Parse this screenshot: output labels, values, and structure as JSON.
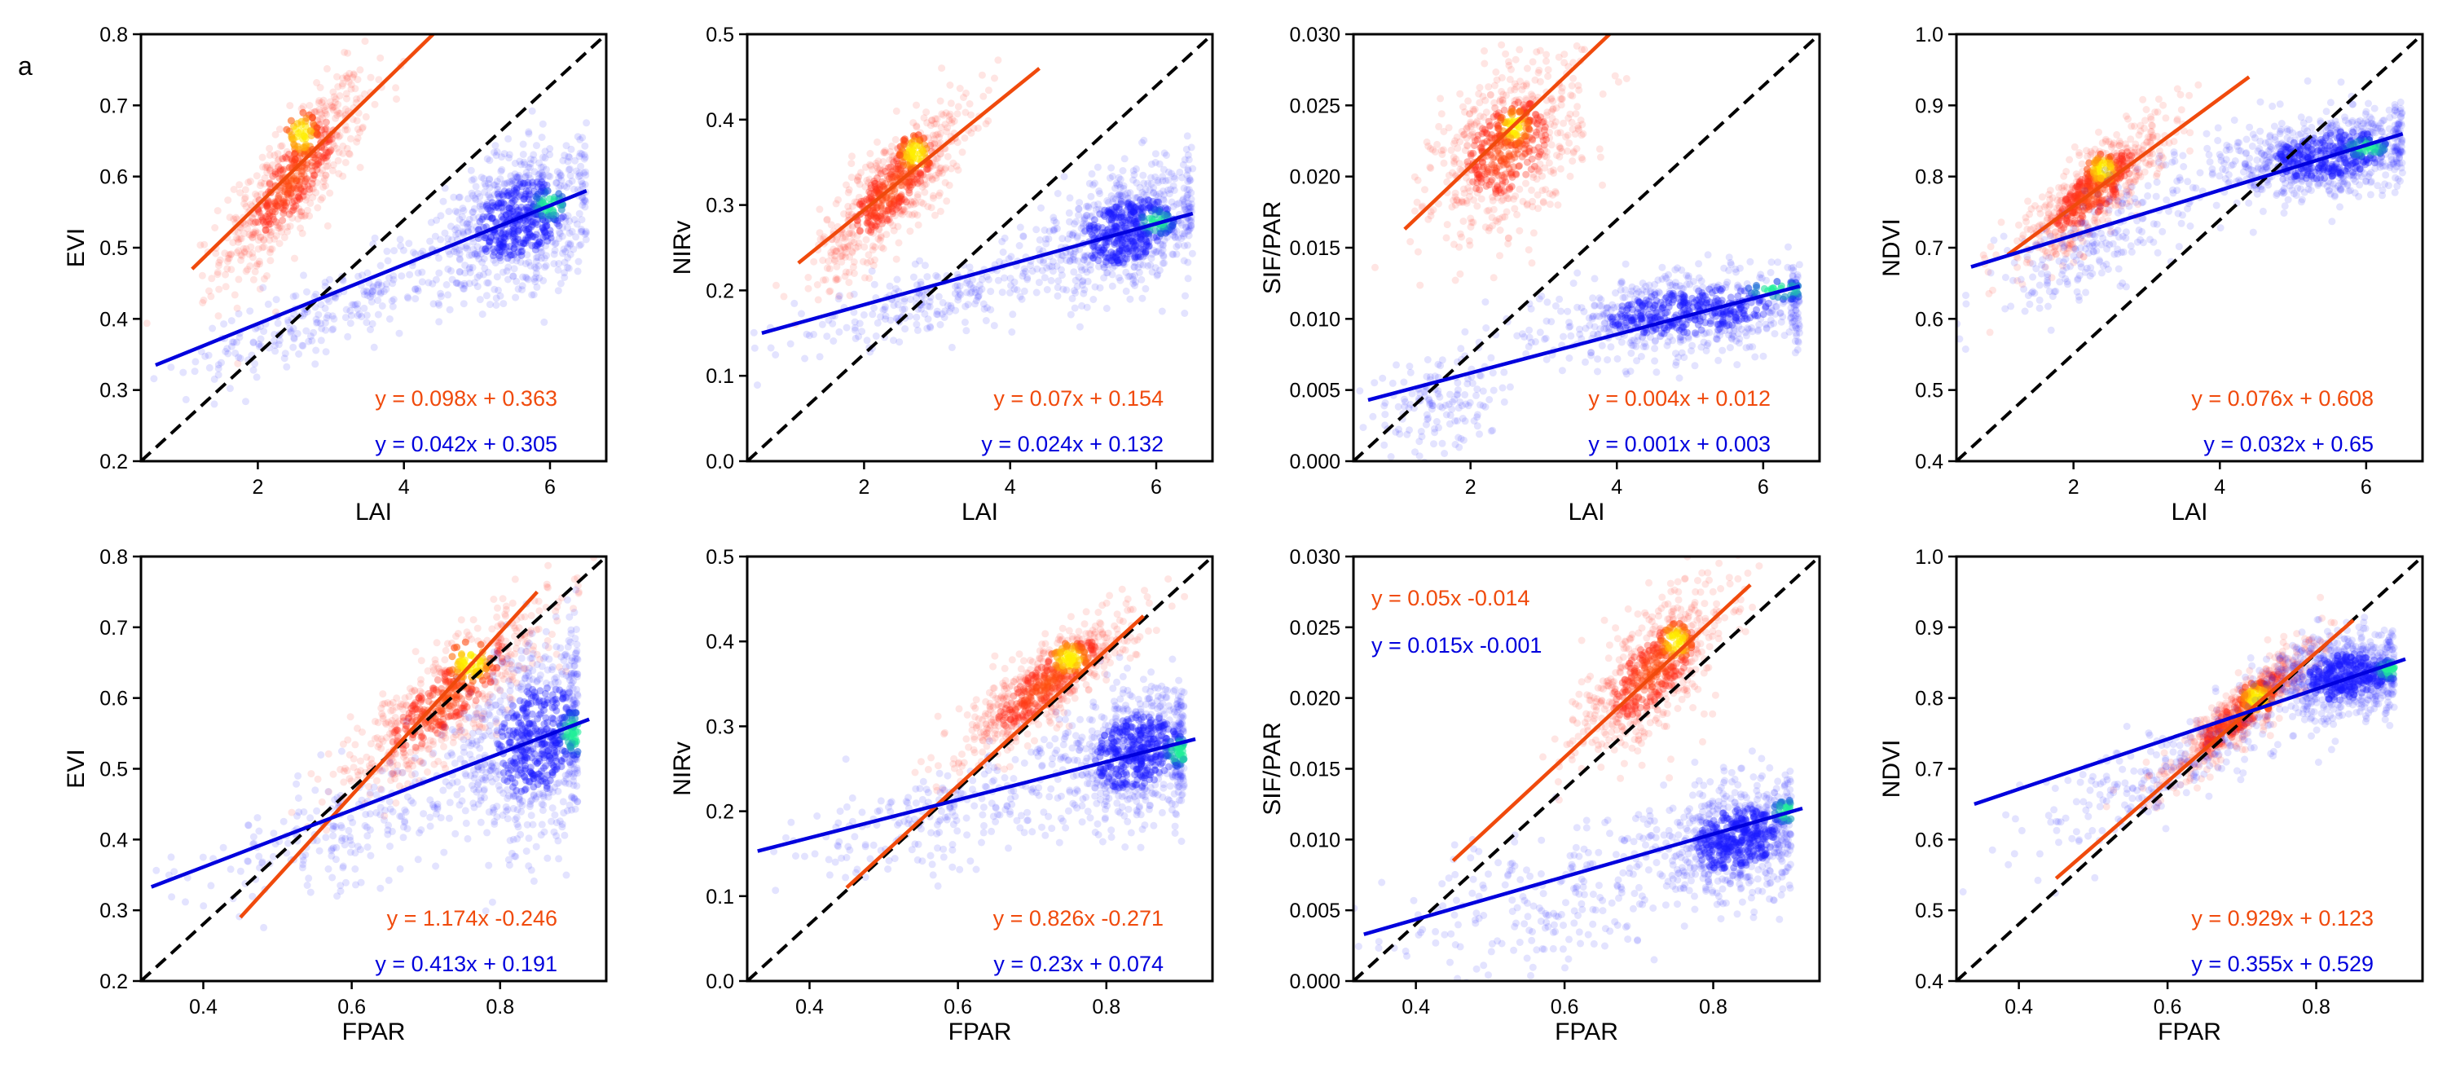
{
  "figure": {
    "panel_letter": "a"
  },
  "colors": {
    "red_fit": "#f04a0c",
    "blue_fit": "#0000dd",
    "red_point": "#ff2a1a",
    "blue_point": "#1a1aff",
    "red_core": "#ffee00",
    "blue_core": "#22ee99",
    "identity": "#000000"
  },
  "chart_data": [
    {
      "type": "scatter",
      "xlabel": "LAI",
      "ylabel": "EVI",
      "xlim": [
        0.4,
        6.77
      ],
      "ylim": [
        0.2,
        0.8
      ],
      "xticks": [
        2,
        4,
        6
      ],
      "xtick_labels": [
        "2",
        "4",
        "6"
      ],
      "yticks": [
        0.2,
        0.3,
        0.4,
        0.5,
        0.6,
        0.7,
        0.8
      ],
      "ytick_labels": [
        "0.2",
        "0.3",
        "0.4",
        "0.5",
        "0.6",
        "0.7",
        "0.8"
      ],
      "legend_placement": "bottom-right",
      "series": [
        {
          "name": "red",
          "equation": "y = 0.098x + 0.363",
          "fit": [
            [
              1.1,
              0.47
            ],
            [
              4.4,
              0.8
            ]
          ],
          "clouds": [
            {
              "cx": 2.5,
              "cy": 0.6,
              "sx": 0.5,
              "sy": 0.07,
              "rho": 0.8,
              "n": 650
            }
          ],
          "core": [
            2.6,
            0.66
          ]
        },
        {
          "name": "blue",
          "equation": "y = 0.042x + 0.305",
          "fit": [
            [
              0.6,
              0.335
            ],
            [
              6.5,
              0.58
            ]
          ],
          "clouds": [
            {
              "cx": 5.6,
              "cy": 0.54,
              "sx": 0.55,
              "sy": 0.05,
              "rho": 0.3,
              "n": 750
            },
            {
              "cx": 3.0,
              "cy": 0.41,
              "sx": 1.0,
              "sy": 0.05,
              "rho": 0.8,
              "n": 250
            }
          ],
          "core": [
            6.0,
            0.56
          ],
          "xmax": 6.5
        }
      ]
    },
    {
      "type": "scatter",
      "xlabel": "LAI",
      "ylabel": "NIRv",
      "xlim": [
        0.4,
        6.77
      ],
      "ylim": [
        0.0,
        0.5
      ],
      "xticks": [
        2,
        4,
        6
      ],
      "xtick_labels": [
        "2",
        "4",
        "6"
      ],
      "yticks": [
        0,
        0.1,
        0.2,
        0.3,
        0.4,
        0.5
      ],
      "ytick_labels": [
        "0.0",
        "0.1",
        "0.2",
        "0.3",
        "0.4",
        "0.5"
      ],
      "legend_placement": "bottom-right",
      "series": [
        {
          "name": "red",
          "equation": "y = 0.07x + 0.154",
          "fit": [
            [
              1.1,
              0.232
            ],
            [
              4.4,
              0.46
            ]
          ],
          "clouds": [
            {
              "cx": 2.4,
              "cy": 0.32,
              "sx": 0.5,
              "sy": 0.05,
              "rho": 0.8,
              "n": 650
            }
          ],
          "core": [
            2.7,
            0.36
          ]
        },
        {
          "name": "blue",
          "equation": "y = 0.024x + 0.132",
          "fit": [
            [
              0.6,
              0.15
            ],
            [
              6.5,
              0.29
            ]
          ],
          "clouds": [
            {
              "cx": 5.6,
              "cy": 0.27,
              "sx": 0.55,
              "sy": 0.035,
              "rho": 0.3,
              "n": 750
            },
            {
              "cx": 3.0,
              "cy": 0.19,
              "sx": 1.0,
              "sy": 0.03,
              "rho": 0.8,
              "n": 250
            }
          ],
          "core": [
            6.0,
            0.28
          ],
          "xmax": 6.5
        }
      ]
    },
    {
      "type": "scatter",
      "xlabel": "LAI",
      "ylabel": "SIF/PAR",
      "xlim": [
        0.4,
        6.77
      ],
      "ylim": [
        0.0,
        0.03
      ],
      "xticks": [
        2,
        4,
        6
      ],
      "xtick_labels": [
        "2",
        "4",
        "6"
      ],
      "yticks": [
        0,
        0.005,
        0.01,
        0.015,
        0.02,
        0.025,
        0.03
      ],
      "ytick_labels": [
        "0.000",
        "0.005",
        "0.010",
        "0.015",
        "0.020",
        "0.025",
        "0.030"
      ],
      "legend_placement": "bottom-right",
      "series": [
        {
          "name": "red",
          "equation": "y = 0.004x + 0.012",
          "fit": [
            [
              1.1,
              0.0163
            ],
            [
              3.9,
              0.03
            ]
          ],
          "clouds": [
            {
              "cx": 2.5,
              "cy": 0.022,
              "sx": 0.5,
              "sy": 0.003,
              "rho": 0.4,
              "n": 650
            }
          ],
          "core": [
            2.6,
            0.0235
          ]
        },
        {
          "name": "blue",
          "equation": "y = 0.001x + 0.003",
          "fit": [
            [
              0.6,
              0.0043
            ],
            [
              6.5,
              0.0123
            ]
          ],
          "clouds": [
            {
              "cx": 5.0,
              "cy": 0.0105,
              "sx": 1.0,
              "sy": 0.0015,
              "rho": 0.3,
              "n": 750
            },
            {
              "cx": 1.6,
              "cy": 0.004,
              "sx": 0.5,
              "sy": 0.002,
              "rho": 0.3,
              "n": 150
            }
          ],
          "core": [
            6.2,
            0.012
          ],
          "xmax": 6.5
        }
      ]
    },
    {
      "type": "scatter",
      "xlabel": "LAI",
      "ylabel": "NDVI",
      "xlim": [
        0.4,
        6.77
      ],
      "ylim": [
        0.4,
        1.0
      ],
      "xticks": [
        2,
        4,
        6
      ],
      "xtick_labels": [
        "2",
        "4",
        "6"
      ],
      "yticks": [
        0.4,
        0.5,
        0.6,
        0.7,
        0.8,
        0.9,
        1.0
      ],
      "ytick_labels": [
        "0.4",
        "0.5",
        "0.6",
        "0.7",
        "0.8",
        "0.9",
        "1.0"
      ],
      "legend_placement": "bottom-right",
      "series": [
        {
          "name": "red",
          "equation": "y = 0.076x + 0.608",
          "fit": [
            [
              1.1,
              0.69
            ],
            [
              4.4,
              0.94
            ]
          ],
          "clouds": [
            {
              "cx": 2.3,
              "cy": 0.78,
              "sx": 0.5,
              "sy": 0.05,
              "rho": 0.8,
              "n": 650
            }
          ],
          "core": [
            2.4,
            0.81
          ]
        },
        {
          "name": "blue",
          "equation": "y = 0.032x + 0.65",
          "fit": [
            [
              0.6,
              0.673
            ],
            [
              6.5,
              0.86
            ]
          ],
          "clouds": [
            {
              "cx": 5.5,
              "cy": 0.83,
              "sx": 0.7,
              "sy": 0.03,
              "rho": 0.3,
              "n": 750
            },
            {
              "cx": 2.5,
              "cy": 0.72,
              "sx": 0.9,
              "sy": 0.06,
              "rho": 0.8,
              "n": 250
            }
          ],
          "core": [
            6.0,
            0.84
          ],
          "xmax": 6.5
        }
      ]
    },
    {
      "type": "scatter",
      "xlabel": "FPAR",
      "ylabel": "EVI",
      "xlim": [
        0.316,
        0.943
      ],
      "ylim": [
        0.2,
        0.8
      ],
      "xticks": [
        0.4,
        0.6,
        0.8
      ],
      "xtick_labels": [
        "0.4",
        "0.6",
        "0.8"
      ],
      "yticks": [
        0.2,
        0.3,
        0.4,
        0.5,
        0.6,
        0.7,
        0.8
      ],
      "ytick_labels": [
        "0.2",
        "0.3",
        "0.4",
        "0.5",
        "0.6",
        "0.7",
        "0.8"
      ],
      "legend_placement": "bottom-right",
      "series": [
        {
          "name": "red",
          "equation": "y = 1.174x -0.246",
          "fit": [
            [
              0.45,
              0.29
            ],
            [
              0.85,
              0.75
            ]
          ],
          "clouds": [
            {
              "cx": 0.73,
              "cy": 0.6,
              "sx": 0.07,
              "sy": 0.07,
              "rho": 0.85,
              "n": 650
            }
          ],
          "core": [
            0.76,
            0.65
          ]
        },
        {
          "name": "blue",
          "equation": "y = 0.413x + 0.191",
          "fit": [
            [
              0.33,
              0.333
            ],
            [
              0.92,
              0.57
            ]
          ],
          "clouds": [
            {
              "cx": 0.85,
              "cy": 0.54,
              "sx": 0.05,
              "sy": 0.07,
              "rho": 0.2,
              "n": 750
            },
            {
              "cx": 0.6,
              "cy": 0.42,
              "sx": 0.12,
              "sy": 0.06,
              "rho": 0.7,
              "n": 250
            }
          ],
          "core": [
            0.9,
            0.55
          ],
          "xmax": 0.905
        }
      ]
    },
    {
      "type": "scatter",
      "xlabel": "FPAR",
      "ylabel": "NIRv",
      "xlim": [
        0.316,
        0.943
      ],
      "ylim": [
        0.0,
        0.5
      ],
      "xticks": [
        0.4,
        0.6,
        0.8
      ],
      "xtick_labels": [
        "0.4",
        "0.6",
        "0.8"
      ],
      "yticks": [
        0,
        0.1,
        0.2,
        0.3,
        0.4,
        0.5
      ],
      "ytick_labels": [
        "0.0",
        "0.1",
        "0.2",
        "0.3",
        "0.4",
        "0.5"
      ],
      "legend_placement": "bottom-right",
      "series": [
        {
          "name": "red",
          "equation": "y = 0.826x -0.271",
          "fit": [
            [
              0.45,
              0.11
            ],
            [
              0.85,
              0.43
            ]
          ],
          "clouds": [
            {
              "cx": 0.72,
              "cy": 0.35,
              "sx": 0.06,
              "sy": 0.045,
              "rho": 0.85,
              "n": 650
            }
          ],
          "core": [
            0.75,
            0.38
          ]
        },
        {
          "name": "blue",
          "equation": "y = 0.23x + 0.074",
          "fit": [
            [
              0.33,
              0.153
            ],
            [
              0.92,
              0.285
            ]
          ],
          "clouds": [
            {
              "cx": 0.84,
              "cy": 0.27,
              "sx": 0.05,
              "sy": 0.04,
              "rho": 0.2,
              "n": 750
            },
            {
              "cx": 0.6,
              "cy": 0.2,
              "sx": 0.12,
              "sy": 0.04,
              "rho": 0.7,
              "n": 250
            }
          ],
          "core": [
            0.9,
            0.27
          ],
          "xmax": 0.905
        }
      ]
    },
    {
      "type": "scatter",
      "xlabel": "FPAR",
      "ylabel": "SIF/PAR",
      "xlim": [
        0.316,
        0.943
      ],
      "ylim": [
        0.0,
        0.03
      ],
      "xticks": [
        0.4,
        0.6,
        0.8
      ],
      "xtick_labels": [
        "0.4",
        "0.6",
        "0.8"
      ],
      "yticks": [
        0,
        0.005,
        0.01,
        0.015,
        0.02,
        0.025,
        0.03
      ],
      "ytick_labels": [
        "0.000",
        "0.005",
        "0.010",
        "0.015",
        "0.020",
        "0.025",
        "0.030"
      ],
      "legend_placement": "top-left",
      "series": [
        {
          "name": "red",
          "equation": "y = 0.05x -0.014",
          "fit": [
            [
              0.45,
              0.0085
            ],
            [
              0.85,
              0.028
            ]
          ],
          "clouds": [
            {
              "cx": 0.72,
              "cy": 0.022,
              "sx": 0.05,
              "sy": 0.003,
              "rho": 0.7,
              "n": 650
            }
          ],
          "core": [
            0.75,
            0.024
          ]
        },
        {
          "name": "blue",
          "equation": "y = 0.015x -0.001",
          "fit": [
            [
              0.33,
              0.0033
            ],
            [
              0.92,
              0.0122
            ]
          ],
          "clouds": [
            {
              "cx": 0.83,
              "cy": 0.01,
              "sx": 0.05,
              "sy": 0.002,
              "rho": 0.2,
              "n": 750
            },
            {
              "cx": 0.6,
              "cy": 0.006,
              "sx": 0.12,
              "sy": 0.003,
              "rho": 0.5,
              "n": 250
            }
          ],
          "core": [
            0.9,
            0.012
          ],
          "xmax": 0.905
        }
      ]
    },
    {
      "type": "scatter",
      "xlabel": "FPAR",
      "ylabel": "NDVI",
      "xlim": [
        0.316,
        0.943
      ],
      "ylim": [
        0.4,
        1.0
      ],
      "xticks": [
        0.4,
        0.6,
        0.8
      ],
      "xtick_labels": [
        "0.4",
        "0.6",
        "0.8"
      ],
      "yticks": [
        0.4,
        0.5,
        0.6,
        0.7,
        0.8,
        0.9,
        1.0
      ],
      "ytick_labels": [
        "0.4",
        "0.5",
        "0.6",
        "0.7",
        "0.8",
        "0.9",
        "1.0"
      ],
      "legend_placement": "bottom-right",
      "series": [
        {
          "name": "red",
          "equation": "y = 0.929x + 0.123",
          "fit": [
            [
              0.45,
              0.545
            ],
            [
              0.85,
              0.91
            ]
          ],
          "clouds": [
            {
              "cx": 0.7,
              "cy": 0.78,
              "sx": 0.05,
              "sy": 0.05,
              "rho": 0.9,
              "n": 650
            }
          ],
          "core": [
            0.72,
            0.8
          ]
        },
        {
          "name": "blue",
          "equation": "y = 0.355x + 0.529",
          "fit": [
            [
              0.34,
              0.65
            ],
            [
              0.92,
              0.855
            ]
          ],
          "clouds": [
            {
              "cx": 0.84,
              "cy": 0.83,
              "sx": 0.05,
              "sy": 0.03,
              "rho": 0.2,
              "n": 750
            },
            {
              "cx": 0.6,
              "cy": 0.7,
              "sx": 0.1,
              "sy": 0.06,
              "rho": 0.8,
              "n": 250
            }
          ],
          "core": [
            0.9,
            0.84
          ],
          "xmax": 0.905
        }
      ]
    }
  ]
}
